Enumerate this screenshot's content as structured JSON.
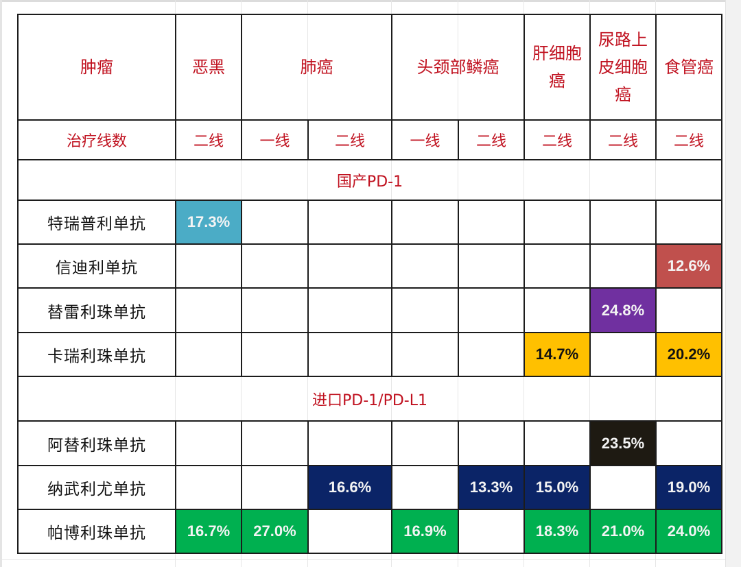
{
  "table": {
    "header": {
      "corner_label": "肿瘤",
      "tumors": [
        {
          "name": "恶黑",
          "span": 1
        },
        {
          "name": "肺癌",
          "span": 2
        },
        {
          "name": "头颈部鳞癌",
          "span": 2
        },
        {
          "name": "肝细胞癌",
          "span": 1
        },
        {
          "name": "尿路上皮细胞癌",
          "span": 1
        },
        {
          "name": "食管癌",
          "span": 1
        }
      ]
    },
    "line_row": {
      "label": "治疗线数",
      "lines": [
        "二线",
        "一线",
        "二线",
        "一线",
        "二线",
        "二线",
        "二线",
        "二线"
      ]
    },
    "sections": [
      {
        "title": "国产PD-1",
        "rows": [
          {
            "drug": "特瑞普利单抗",
            "cells": [
              "17.3%",
              "",
              "",
              "",
              "",
              "",
              "",
              ""
            ],
            "colors": [
              "#4bacc6",
              "",
              "",
              "",
              "",
              "",
              "",
              ""
            ]
          },
          {
            "drug": "信迪利单抗",
            "cells": [
              "",
              "",
              "",
              "",
              "",
              "",
              "",
              "12.6%"
            ],
            "colors": [
              "",
              "",
              "",
              "",
              "",
              "",
              "",
              "#c0504d"
            ]
          },
          {
            "drug": "替雷利珠单抗",
            "cells": [
              "",
              "",
              "",
              "",
              "",
              "",
              "24.8%",
              ""
            ],
            "colors": [
              "",
              "",
              "",
              "",
              "",
              "",
              "#7030a0",
              ""
            ]
          },
          {
            "drug": "卡瑞利珠单抗",
            "cells": [
              "",
              "",
              "",
              "",
              "",
              "14.7%",
              "",
              "20.2%"
            ],
            "colors": [
              "",
              "",
              "",
              "",
              "",
              "#ffc000",
              "",
              "#ffc000"
            ]
          }
        ]
      },
      {
        "title": "进口PD-1/PD-L1",
        "rows": [
          {
            "drug": "阿替利珠单抗",
            "cells": [
              "",
              "",
              "",
              "",
              "",
              "",
              "23.5%",
              ""
            ],
            "colors": [
              "",
              "",
              "",
              "",
              "",
              "",
              "#1e1a12",
              ""
            ]
          },
          {
            "drug": "纳武利尤单抗",
            "cells": [
              "",
              "",
              "16.6%",
              "",
              "13.3%",
              "15.0%",
              "",
              "19.0%"
            ],
            "colors": [
              "",
              "",
              "#0b2467",
              "",
              "#0b2467",
              "#0b2467",
              "",
              "#0b2467"
            ]
          },
          {
            "drug": "帕博利珠单抗",
            "cells": [
              "16.7%",
              "27.0%",
              "",
              "16.9%",
              "",
              "18.3%",
              "21.0%",
              "24.0%"
            ],
            "colors": [
              "#00b050",
              "#00b050",
              "",
              "#00b050",
              "",
              "#00b050",
              "#00b050",
              "#00b050"
            ]
          }
        ]
      }
    ]
  },
  "colors": {
    "header_text": "#c0111f",
    "toripalimab": "#4bacc6",
    "sintilimab": "#c0504d",
    "tislelizumab": "#7030a0",
    "camrelizumab": "#ffc000",
    "atezolizumab": "#1e1a12",
    "nivolumab": "#0b2467",
    "pembrolizumab": "#00b050"
  }
}
